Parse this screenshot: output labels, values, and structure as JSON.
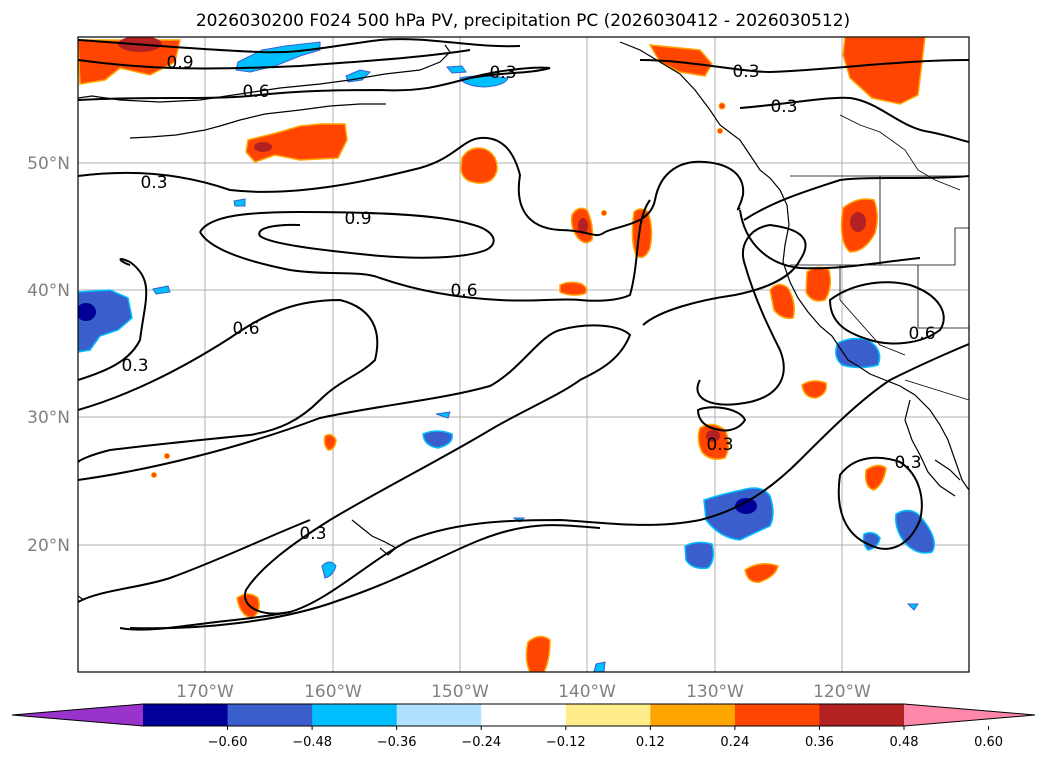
{
  "title": "2026030200 F024 500 hPa PV, precipitation PC (2026030412 - 2026030512)",
  "map": {
    "lat_ticks": [
      "50°N",
      "40°N",
      "30°N",
      "20°N"
    ],
    "lon_ticks": [
      "170°W",
      "160°W",
      "150°W",
      "140°W",
      "130°W",
      "120°W"
    ],
    "contour_labels": [
      "0.9",
      "0.6",
      "0.3",
      "0.3",
      "0.3",
      "0.3",
      "0.9",
      "0.6",
      "0.6",
      "0.3",
      "0.3",
      "0.3",
      "0.3",
      "0.6"
    ]
  },
  "colorbar": {
    "ticks": [
      "−0.60",
      "−0.48",
      "−0.36",
      "−0.24",
      "−0.12",
      "0.12",
      "0.24",
      "0.36",
      "0.48",
      "0.60"
    ],
    "colors": [
      "#9933cc",
      "#000099",
      "#3a5fcd",
      "#00bfff",
      "#b0e2ff",
      "#ffffff",
      "#ffec8b",
      "#ffa500",
      "#ff4500",
      "#b22222",
      "#ff88aa"
    ]
  }
}
